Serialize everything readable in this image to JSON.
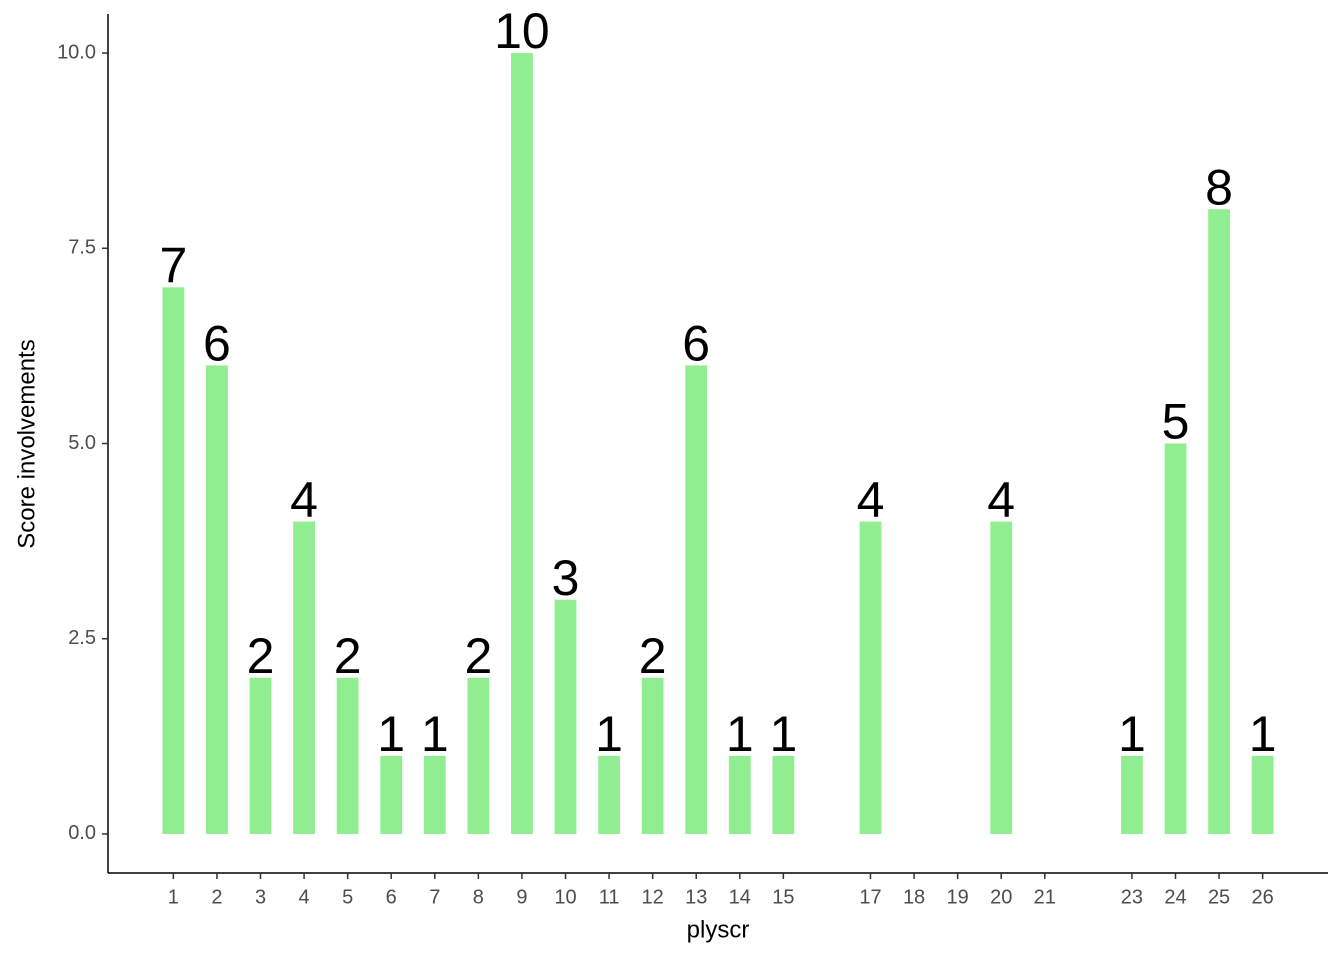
{
  "chart_data": {
    "type": "bar",
    "x": [
      1,
      2,
      3,
      4,
      5,
      6,
      7,
      8,
      9,
      10,
      11,
      12,
      13,
      14,
      15,
      17,
      20,
      23,
      24,
      25,
      26
    ],
    "values": [
      7,
      6,
      2,
      4,
      2,
      1,
      1,
      2,
      10,
      3,
      1,
      2,
      6,
      1,
      1,
      4,
      4,
      1,
      5,
      8,
      1
    ],
    "color": "#90ee90",
    "xlabel": "plyscr",
    "ylabel": "Score involvements",
    "xlim": [
      -0.5,
      27.5
    ],
    "xticks": [
      1,
      2,
      3,
      4,
      5,
      6,
      7,
      8,
      9,
      10,
      11,
      12,
      13,
      14,
      15,
      17,
      18,
      19,
      20,
      21,
      23,
      24,
      25,
      26
    ],
    "ylim": [
      -0.5,
      10.5
    ],
    "yticks": [
      {
        "value": 0,
        "label": "0.0"
      },
      2.5,
      {
        "value": 5,
        "label": "5.0"
      },
      7.5,
      {
        "value": 10,
        "label": "10.0"
      }
    ],
    "grid": false
  }
}
